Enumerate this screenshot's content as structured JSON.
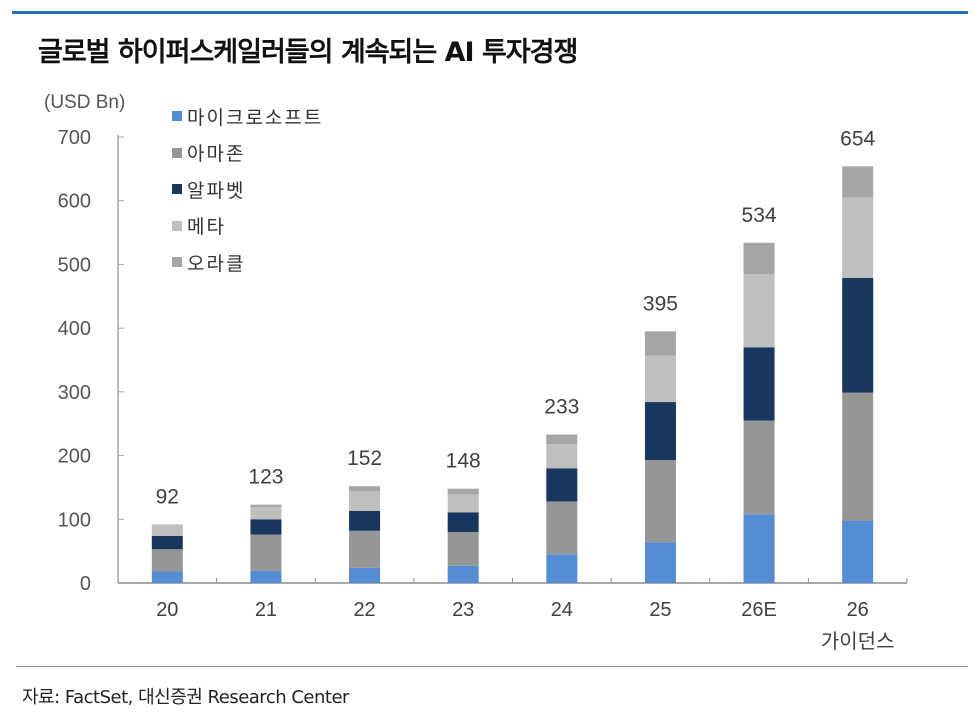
{
  "header": {
    "title": "글로벌 하이퍼스케일러들의 계속되는 AI 투자경쟁"
  },
  "footer": {
    "source": "자료: FactSet, 대신증권 Research Center"
  },
  "chart_data": {
    "type": "bar",
    "stacked": true,
    "title": "글로벌 하이퍼스케일러들의 계속되는 AI 투자경쟁",
    "unit_label": "(USD Bn)",
    "xlabel": "",
    "ylabel": "(USD Bn)",
    "ylim": [
      0,
      700
    ],
    "yticks": [
      0,
      100,
      200,
      300,
      400,
      500,
      600,
      700
    ],
    "ytick_labels": [
      "0",
      "100",
      "200",
      "300",
      "400",
      "500",
      "600",
      "700"
    ],
    "grid": false,
    "legend_position": "top-left",
    "categories": [
      "20",
      "21",
      "22",
      "23",
      "24",
      "25",
      "26E",
      "26 가이던스"
    ],
    "category_lines": [
      [
        "20"
      ],
      [
        "21"
      ],
      [
        "22"
      ],
      [
        "23"
      ],
      [
        "24"
      ],
      [
        "25"
      ],
      [
        "26E"
      ],
      [
        "26",
        "가이던스"
      ]
    ],
    "totals": [
      92,
      123,
      152,
      148,
      233,
      395,
      534,
      654
    ],
    "total_labels": [
      "92",
      "123",
      "152",
      "148",
      "233",
      "395",
      "534",
      "654"
    ],
    "series": [
      {
        "name": "마이크로소프트",
        "color": "#548DD4",
        "values": [
          18,
          19,
          24,
          27,
          45,
          64,
          108,
          98
        ]
      },
      {
        "name": "아마존",
        "color": "#969696",
        "values": [
          35,
          57,
          58,
          53,
          83,
          129,
          147,
          201
        ]
      },
      {
        "name": "알파벳",
        "color": "#17375E",
        "values": [
          21,
          24,
          31,
          31,
          52,
          91,
          115,
          180
        ]
      },
      {
        "name": "메타",
        "color": "#BFBFBF",
        "values": [
          18,
          19,
          31,
          28,
          38,
          73,
          115,
          126
        ]
      },
      {
        "name": "오라클",
        "color": "#A6A6A6",
        "values": [
          0,
          4,
          8,
          9,
          15,
          38,
          49,
          49
        ]
      }
    ]
  }
}
